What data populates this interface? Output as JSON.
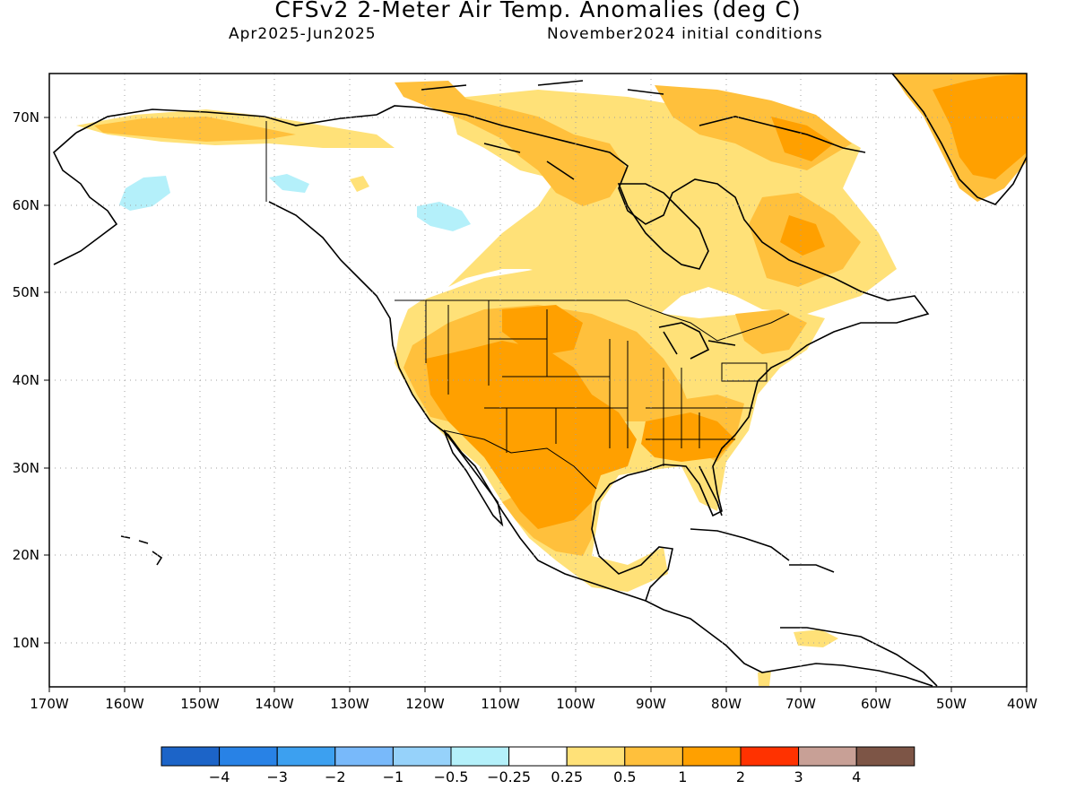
{
  "title": "CFSv2 2-Meter Air Temp. Anomalies (deg C)",
  "period": "Apr2025-Jun2025",
  "init": "November2024 initial conditions",
  "lat_labels": [
    "70N",
    "60N",
    "50N",
    "40N",
    "30N",
    "20N",
    "10N"
  ],
  "lon_labels": [
    "170W",
    "160W",
    "150W",
    "140W",
    "130W",
    "120W",
    "110W",
    "100W",
    "90W",
    "80W",
    "70W",
    "60W",
    "50W",
    "40W"
  ],
  "colorbar": {
    "colors": [
      "#1c64c8",
      "#2882e6",
      "#3ca0f0",
      "#78b9fa",
      "#96d2fa",
      "#b4f0fa",
      "#ffffff",
      "#ffe178",
      "#ffc03c",
      "#ffa000",
      "#ff3200",
      "#c8a096",
      "#7d5546"
    ],
    "labels": [
      "-4",
      "-3",
      "-2",
      "-1",
      "-0.5",
      "-0.25",
      "0.25",
      "0.5",
      "1",
      "2",
      "3",
      "4"
    ]
  },
  "legend_colors": {
    "very_light_orange": "#ffe178",
    "light_orange": "#ffc03c",
    "orange": "#ffa000",
    "light_blue": "#b4f0fa"
  }
}
